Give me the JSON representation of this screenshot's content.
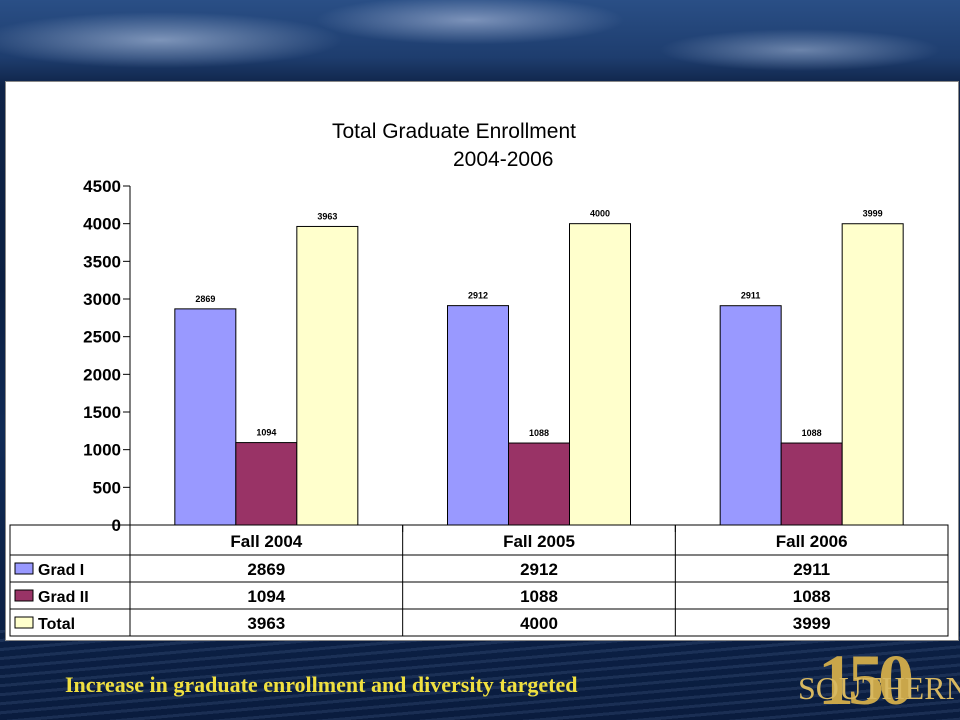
{
  "caption": "Increase in graduate enrollment and diversity targeted",
  "logo": {
    "number": "150",
    "word": "SOUTHERN"
  },
  "colors": {
    "grad1": "#9999ff",
    "grad2": "#993366",
    "total": "#ffffcc"
  },
  "chart_data": {
    "type": "bar",
    "title": "Total Graduate Enrollment",
    "subtitle": "2004-2006",
    "categories": [
      "Fall 2004",
      "Fall 2005",
      "Fall 2006"
    ],
    "series": [
      {
        "name": "Grad I",
        "values": [
          2869,
          2912,
          2911
        ]
      },
      {
        "name": "Grad II",
        "values": [
          1094,
          1088,
          1088
        ]
      },
      {
        "name": "Total",
        "values": [
          3963,
          4000,
          3999
        ]
      }
    ],
    "ylim": [
      0,
      4500
    ],
    "yticks": [
      0,
      500,
      1000,
      1500,
      2000,
      2500,
      3000,
      3500,
      4000,
      4500
    ],
    "data_table": true
  }
}
